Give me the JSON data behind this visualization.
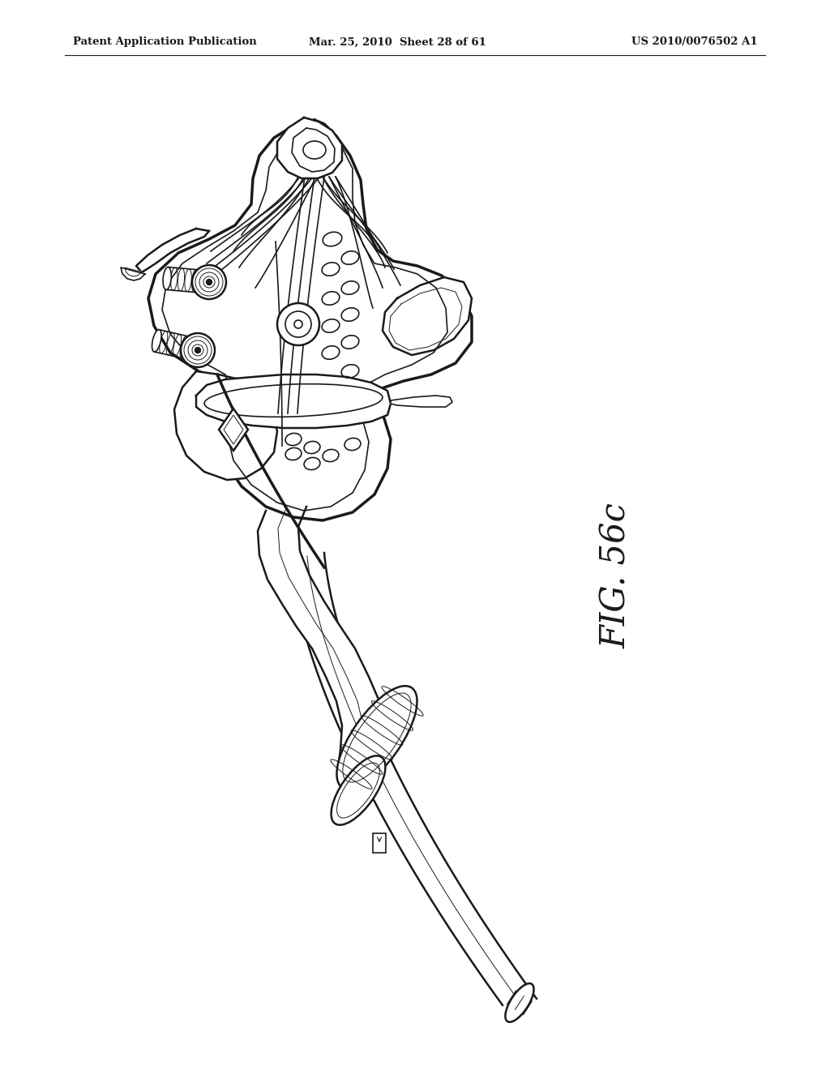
{
  "header_left": "Patent Application Publication",
  "header_center": "Mar. 25, 2010  Sheet 28 of 61",
  "header_right": "US 2010/0076502 A1",
  "figure_label": "FIG. 56c",
  "background_color": "#ffffff",
  "line_color": "#1a1a1a",
  "fig_width": 10.24,
  "fig_height": 13.2,
  "dpi": 100
}
